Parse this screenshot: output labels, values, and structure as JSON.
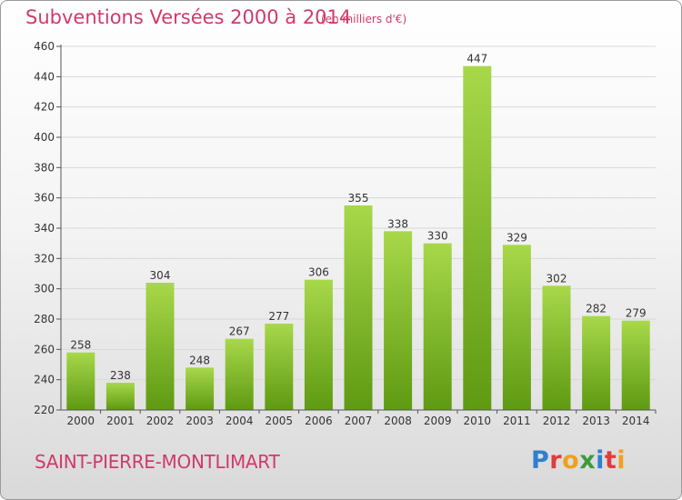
{
  "header": {
    "title": "Subventions Versées 2000 à 2014",
    "unit": "(en milliers d'€)"
  },
  "footer": {
    "commune": "SAINT-PIERRE-MONTLIMART",
    "logo_text": "Proxiti",
    "logo_colors": [
      "#2f7fd0",
      "#e03c3c",
      "#f0a020",
      "#3c9c3c",
      "#2f7fd0",
      "#e03c3c",
      "#f0a020"
    ]
  },
  "colors": {
    "title": "#d03a6a",
    "bar_light": "#a8d84a",
    "bar_dark": "#5e9a12",
    "grid": "#d8d8d8"
  },
  "chart_data": {
    "type": "bar",
    "title": "Subventions Versées 2000 à 2014",
    "subtitle": "(en milliers d'€)",
    "xlabel": "",
    "ylabel": "",
    "categories": [
      "2000",
      "2001",
      "2002",
      "2003",
      "2004",
      "2005",
      "2006",
      "2007",
      "2008",
      "2009",
      "2010",
      "2011",
      "2012",
      "2013",
      "2014"
    ],
    "values": [
      258,
      238,
      304,
      248,
      267,
      277,
      306,
      355,
      338,
      330,
      447,
      329,
      302,
      282,
      279
    ],
    "ylim": [
      220,
      460
    ],
    "yticks": [
      220,
      240,
      260,
      280,
      300,
      320,
      340,
      360,
      380,
      400,
      420,
      440,
      460
    ],
    "grid": true,
    "legend": "none"
  }
}
